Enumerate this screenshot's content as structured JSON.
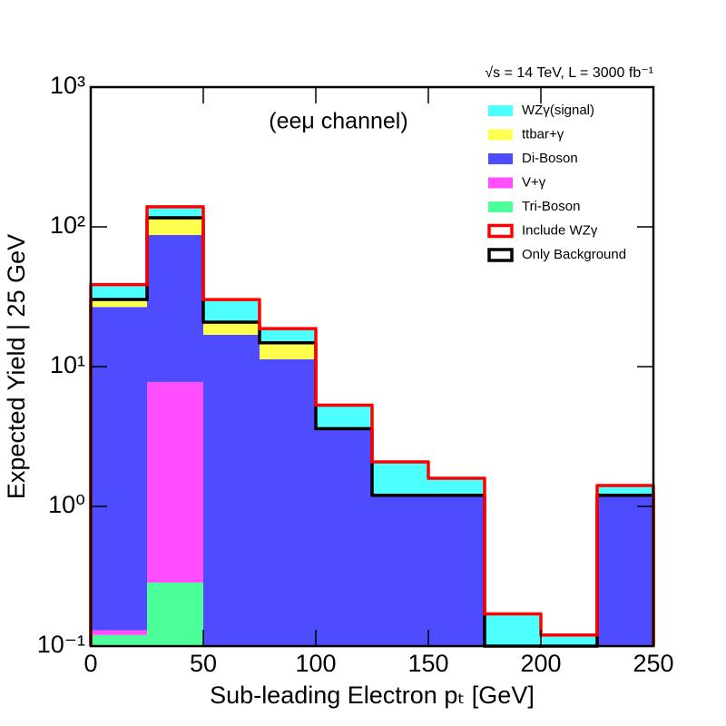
{
  "chart_data": {
    "type": "stacked-histogram",
    "annotation": "(eeμ channel)",
    "header": "√s = 14 TeV, L = 3000 fb⁻¹",
    "xlabel": "Sub-leading Electron pₜ [GeV]",
    "ylabel": "Expected Yield | 25 GeV",
    "bins": [
      0,
      25,
      50,
      75,
      100,
      125,
      150,
      175,
      200,
      225,
      250
    ],
    "series": [
      {
        "name": "WZγ(signal)",
        "color": "#4dffff",
        "values": [
          8.4,
          23,
          9.4,
          3.9,
          1.7,
          0.88,
          0.39,
          0.17,
          0.12,
          0.21
        ]
      },
      {
        "name": "ttbar+γ",
        "color": "#ffff4d",
        "values": [
          3.5,
          28.6,
          3.9,
          3.5,
          0,
          0,
          0,
          0,
          0,
          0
        ]
      },
      {
        "name": "Di-Boson",
        "color": "#4d4dff",
        "values": [
          26.6,
          79.8,
          16.8,
          11.3,
          3.6,
          1.2,
          1.2,
          0,
          0,
          1.2
        ]
      },
      {
        "name": "V+γ",
        "color": "#ff4dff",
        "values": [
          0.01,
          7.48,
          0,
          0,
          0,
          0,
          0,
          0,
          0,
          0
        ]
      },
      {
        "name": "Tri-Boson",
        "color": "#4dff99",
        "values": [
          0.12,
          0.285,
          0.1,
          0,
          0,
          0,
          0,
          0,
          0,
          0
        ]
      }
    ],
    "outlines": [
      {
        "name": "Include WZγ",
        "color": "#ff0000"
      },
      {
        "name": "Only Background",
        "color": "#000000"
      }
    ],
    "log_y": true,
    "xlim": [
      0,
      250
    ],
    "xticks": [
      0,
      50,
      100,
      150,
      200,
      250
    ],
    "ylim": [
      0.1,
      1000
    ],
    "yticks": [
      {
        "value": 0.1,
        "label": "10⁻¹"
      },
      {
        "value": 1,
        "label": "10⁰"
      },
      {
        "value": 10,
        "label": "10¹"
      },
      {
        "value": 100,
        "label": "10²"
      },
      {
        "value": 1000,
        "label": "10³"
      }
    ]
  }
}
